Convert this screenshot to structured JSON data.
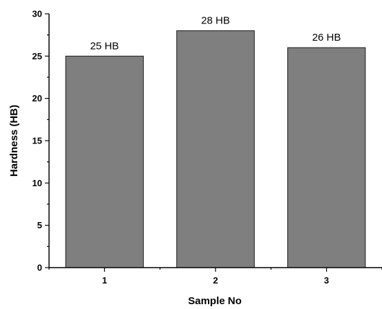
{
  "chart_data": {
    "type": "bar",
    "categories": [
      "1",
      "2",
      "3"
    ],
    "values": [
      25,
      28,
      26
    ],
    "data_labels": [
      "25 HB",
      "28 HB",
      "26 HB"
    ],
    "title": "",
    "xlabel": "Sample No",
    "ylabel": "Hardness (HB)",
    "ylim": [
      0,
      30
    ],
    "yticks": [
      0,
      5,
      10,
      15,
      20,
      25,
      30
    ],
    "grid": false,
    "legend": "none",
    "colors": {
      "bar_fill": "#7f7f7f",
      "bar_stroke": "#1a1a1a",
      "axis": "#000000"
    }
  }
}
